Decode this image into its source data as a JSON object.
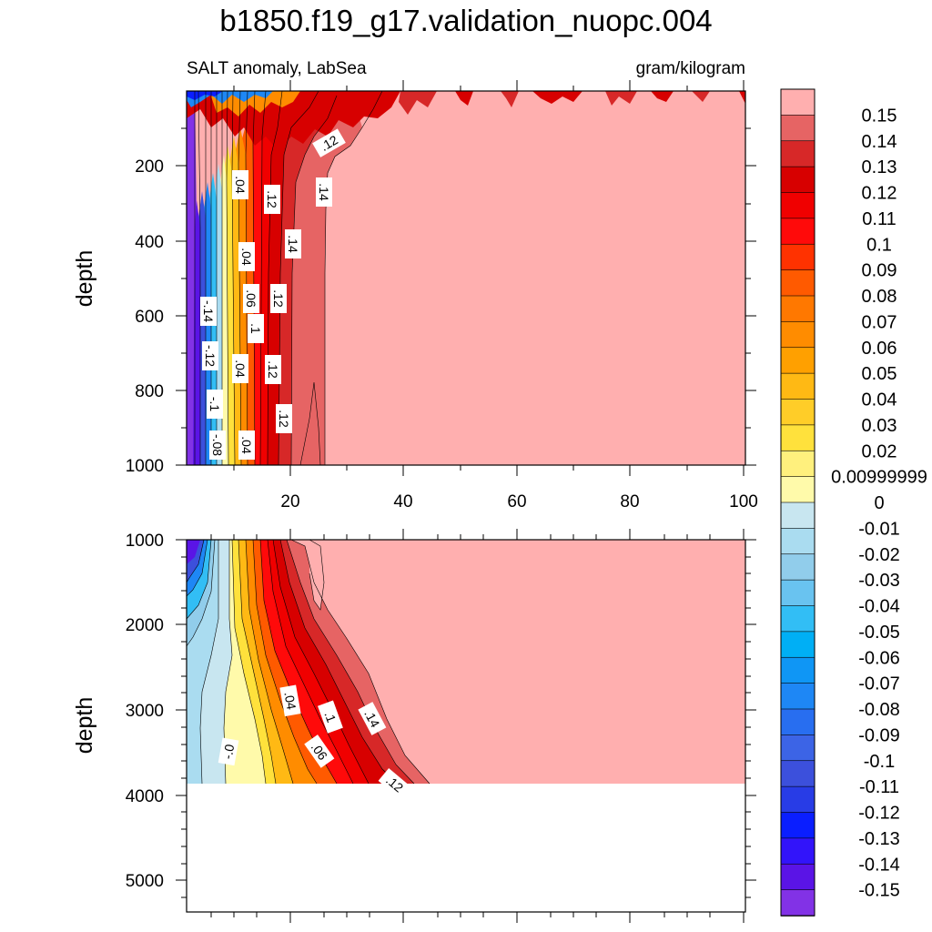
{
  "chart_data": {
    "type": "contour",
    "title": "b1850.f19_g17.validation_nuopc.004",
    "subtitle_left": "SALT anomaly, LabSea",
    "subtitle_right": "gram/kilogram",
    "xlabel": "",
    "ylabel": "depth",
    "xlim": [
      0,
      100
    ],
    "x_ticks": [
      "20",
      "40",
      "60",
      "80",
      "100"
    ],
    "panels": [
      {
        "name": "upper",
        "ylim": [
          0,
          1000
        ],
        "y_ticks": [
          "200",
          "400",
          "600",
          "800",
          "1000"
        ],
        "contour_labels": [
          ".12",
          ".14",
          ".04",
          ".12",
          ".04",
          ".14",
          "-.14",
          ".06",
          ".12",
          ".1",
          "-.12",
          ".04",
          ".12",
          "-.1",
          ".12",
          "-.08",
          ".04"
        ]
      },
      {
        "name": "lower",
        "ylim": [
          1000,
          5400
        ],
        "y_ticks": [
          "1000",
          "2000",
          "3000",
          "4000",
          "5000"
        ],
        "data_bottom": 3875,
        "contour_labels": [
          ".04",
          ".1",
          ".14",
          "-.0",
          ".06",
          ".12"
        ]
      }
    ],
    "colorbar": {
      "labels": [
        "0.15",
        "0.14",
        "0.13",
        "0.12",
        "0.11",
        "0.1",
        "0.09",
        "0.08",
        "0.07",
        "0.06",
        "0.05",
        "0.04",
        "0.03",
        "0.02",
        "0.00999999",
        "0",
        "-0.01",
        "-0.02",
        "-0.03",
        "-0.04",
        "-0.05",
        "-0.06",
        "-0.07",
        "-0.08",
        "-0.09",
        "-0.1",
        "-0.11",
        "-0.12",
        "-0.13",
        "-0.14",
        "-0.15"
      ],
      "colors": [
        "#FFAFAF",
        "#E66464",
        "#D72828",
        "#D70000",
        "#F00000",
        "#FF0A0A",
        "#FF3200",
        "#FF5A00",
        "#FF7800",
        "#FF8C00",
        "#FFA000",
        "#FFB914",
        "#FFCD28",
        "#FFE13C",
        "#FFF07D",
        "#FFFAAA",
        "#C8E6F0",
        "#AADCF0",
        "#91CDEB",
        "#69C3F0",
        "#32BEF5",
        "#00AFF5",
        "#0F96F5",
        "#1E87F5",
        "#286EF0",
        "#3C64E6",
        "#3C50DC",
        "#283CE6",
        "#0A1EFF",
        "#3214FA",
        "#5A14E6",
        "#8232E6"
      ]
    }
  }
}
